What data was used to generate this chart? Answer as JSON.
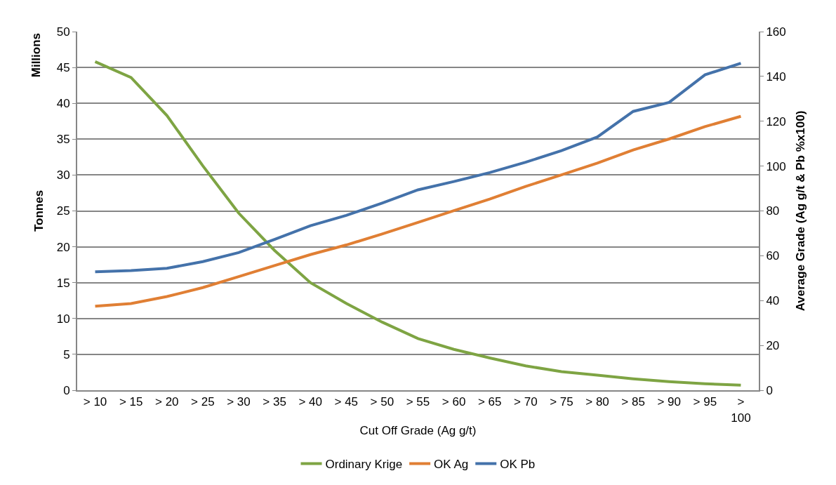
{
  "chart_data": {
    "type": "line",
    "xlabel": "Cut Off Grade (Ag g/t)",
    "ylabel": "Tonnes",
    "y2label": "Average Grade (Ag g/t & Pb %x100)",
    "annotations": [
      "Millions"
    ],
    "categories": [
      "> 10",
      "> 15",
      "> 20",
      "> 25",
      "> 30",
      "> 35",
      "> 40",
      "> 45",
      "> 50",
      "> 55",
      "> 60",
      "> 65",
      "> 70",
      "> 75",
      "> 80",
      "> 85",
      "> 90",
      "> 95",
      "> 100"
    ],
    "series": [
      {
        "name": "Ordinary Krige",
        "color": "#7ea443",
        "values": [
          45.8,
          43.6,
          38.3,
          31.3,
          24.7,
          19.5,
          15.0,
          12.1,
          9.5,
          7.2,
          5.7,
          4.5,
          3.4,
          2.6,
          2.1,
          1.6,
          1.2,
          0.9,
          0.7
        ]
      },
      {
        "name": "OK Ag",
        "color": "#e07f34",
        "axis": "y2",
        "values": [
          37.5,
          38.7,
          41.8,
          45.8,
          50.7,
          55.6,
          60.5,
          64.8,
          69.7,
          74.9,
          80.1,
          85.3,
          90.9,
          96.1,
          101.3,
          107.2,
          112.1,
          117.6,
          122.2
        ]
      },
      {
        "name": "OK Pb",
        "color": "#4472aa",
        "axis": "y2",
        "values": [
          52.8,
          53.4,
          54.4,
          57.4,
          61.4,
          67.3,
          73.4,
          78.0,
          83.5,
          89.4,
          93.1,
          97.1,
          101.7,
          106.9,
          113.0,
          124.4,
          128.4,
          140.7,
          145.9
        ]
      }
    ],
    "ylim": [
      0,
      50
    ],
    "yticks": [
      0,
      5,
      10,
      15,
      20,
      25,
      30,
      35,
      40,
      45,
      50
    ],
    "y2lim": [
      0,
      160
    ],
    "y2ticks": [
      0,
      20,
      40,
      60,
      80,
      100,
      120,
      140,
      160
    ],
    "grid": "y",
    "legend": "bottom",
    "marker": "none",
    "line_style": "solid"
  }
}
